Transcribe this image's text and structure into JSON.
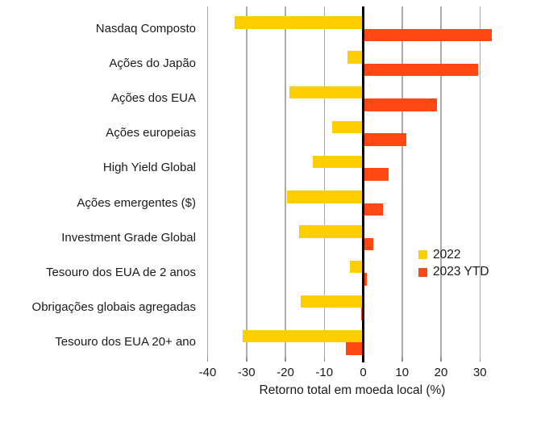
{
  "chart_data": {
    "type": "bar",
    "orientation": "horizontal",
    "title": "",
    "xlabel": "Retorno total em moeda local (%)",
    "ylabel": "",
    "categories": [
      "Nasdaq Composto",
      "Ações do Japão",
      "Ações dos EUA",
      "Ações europeias",
      "High Yield Global",
      "Ações emergentes ($)",
      "Investment Grade Global",
      "Tesouro dos EUA de 2 anos",
      "Obrigações globais agregadas",
      "Tesouro dos EUA 20+ ano"
    ],
    "series": [
      {
        "name": "2022",
        "color": "#FFCE00",
        "values": [
          -33,
          -4,
          -19,
          -8,
          -13,
          -19.5,
          -16.5,
          -3.5,
          -16,
          -31
        ]
      },
      {
        "name": "2023 YTD",
        "color": "#FF4713",
        "values": [
          33,
          29.5,
          19,
          11,
          6.5,
          5,
          2.5,
          1,
          -0.5,
          -4.5
        ]
      }
    ],
    "x_ticks": [
      -40,
      -30,
      -20,
      -10,
      0,
      10,
      20,
      30
    ],
    "xlim": [
      -44,
      37
    ],
    "grid": "vertical-only",
    "zero_line": true,
    "legend_position": "middle-right",
    "legend_entries": [
      "2022",
      "2023 YTD"
    ],
    "colors": {
      "grid": "#ABABAB",
      "zero_line": "#000000",
      "text": "#1A1A1A",
      "background": "#FFFFFF"
    }
  }
}
